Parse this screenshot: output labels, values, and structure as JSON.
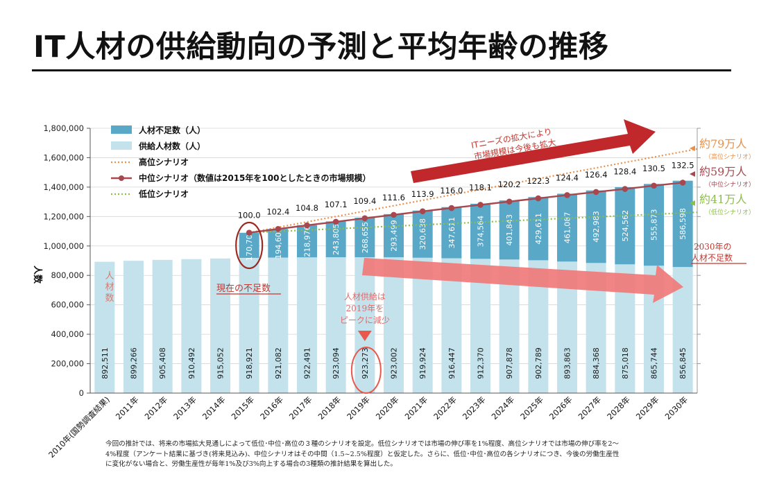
{
  "title": "IT人材の供給動向の予測と平均年齢の推移",
  "footnote": [
    "今回の推計では、将来の市場拡大見通しによって低位･中位･高位の３種のシナリオを設定。低位シナリオでは市場の伸び率を1%程度、高位シナリオでは市場の伸び率を2～",
    "4%程度（アンケート結果に基づき(将来見込み)、中位シナリオはその中間（1.5~2.5%程度）と仮定した。さらに、低位･中位･高位の各シナリオにつき、今後の労働生産性",
    "に変化がない場合と、労働生産性が毎年1%及び3%向上する場合の3種類の推計結果を算出した。"
  ],
  "colors": {
    "shortage": "#5aa8c8",
    "supply": "#c4e2ec",
    "high": "#e8904a",
    "mid": "#a9474f",
    "low": "#8cbf45",
    "arrow_dark": "#c0282b",
    "arrow_light": "#f07a7a",
    "annot_red": "#c2372f",
    "annot_pink": "#e06a6a"
  },
  "chart_data": {
    "type": "bar",
    "ylabel": "人数",
    "ylim": [
      0,
      1800000
    ],
    "yticks": [
      "0",
      "200,000",
      "400,000",
      "600,000",
      "800,000",
      "1,000,000",
      "1,200,000",
      "1,400,000",
      "1,600,000",
      "1,800,000"
    ],
    "yticks_values": [
      0,
      200000,
      400000,
      600000,
      800000,
      1000000,
      1200000,
      1400000,
      1600000,
      1800000
    ],
    "categories": [
      "2010年(国勢調査結果)",
      "2011年",
      "2012年",
      "2013年",
      "2014年",
      "2015年",
      "2016年",
      "2017年",
      "2018年",
      "2019年",
      "2020年",
      "2021年",
      "2022年",
      "2023年",
      "2024年",
      "2025年",
      "2026年",
      "2027年",
      "2028年",
      "2029年",
      "2030年"
    ],
    "legend": [
      "人材不足数（人）",
      "供給人材数（人）",
      "高位シナリオ",
      "中位シナリオ（数値は2015年を100としたときの市場規模）",
      "低位シナリオ"
    ],
    "series": [
      {
        "name": "供給人材数（人）",
        "values": [
          892511,
          899266,
          905408,
          910492,
          915052,
          918921,
          921082,
          922491,
          923094,
          923273,
          923002,
          919924,
          916447,
          912370,
          907878,
          902789,
          893863,
          884368,
          875018,
          865744,
          856845
        ],
        "labels": [
          "892,511",
          "899,266",
          "905,408",
          "910,492",
          "915,052",
          "918,921",
          "921,082",
          "922,491",
          "923,094",
          "923,273",
          "923,002",
          "919,924",
          "916,447",
          "912,370",
          "907,878",
          "902,789",
          "893,863",
          "884,368",
          "875,018",
          "865,744",
          "856,845"
        ]
      },
      {
        "name": "人材不足数（人）",
        "values": [
          null,
          null,
          null,
          null,
          null,
          170700,
          194608,
          218976,
          243805,
          268655,
          293499,
          320638,
          347611,
          374564,
          401843,
          429611,
          461087,
          492983,
          524562,
          555873,
          586598
        ],
        "labels": [
          "",
          "",
          "",
          "",
          "",
          "170,700",
          "194,608",
          "218,976",
          "243,805",
          "268,655",
          "293,499",
          "320,638",
          "347,611",
          "374,564",
          "401,843",
          "429,611",
          "461,087",
          "492,983",
          "524,562",
          "555,873",
          "586,598"
        ]
      },
      {
        "name": "中位シナリオ（数値は2015年を100としたときの市場規模）",
        "values": [
          null,
          null,
          null,
          null,
          null,
          100.0,
          102.4,
          104.8,
          107.1,
          109.4,
          111.6,
          113.9,
          116.0,
          118.1,
          120.2,
          122.3,
          124.4,
          126.4,
          128.4,
          130.5,
          132.5
        ],
        "labels": [
          "",
          "",
          "",
          "",
          "",
          "100.0",
          "102.4",
          "104.8",
          "107.1",
          "109.4",
          "111.6",
          "113.9",
          "116.0",
          "118.1",
          "120.2",
          "122.3",
          "124.4",
          "126.4",
          "128.4",
          "130.5",
          "132.5"
        ]
      }
    ],
    "scenario_shortage_2030": {
      "high": 790000,
      "mid": 590000,
      "low": 410000
    }
  },
  "annotations": {
    "arrow_top": [
      "ITニーズの拡大により",
      "市場規模は今後も拡大"
    ],
    "high_value": "約79万人",
    "high_sub": "（高位シナリオ）",
    "mid_value": "約59万人",
    "mid_sub": "（中位シナリオ）",
    "low_value": "約41万人",
    "low_sub": "（低位シナリオ）",
    "shortage_2030": [
      "2030年の",
      "人材不足数"
    ],
    "current_shortage": "現在の不足数",
    "peak": [
      "人材供給は",
      "2019年を",
      "ピークに減少"
    ],
    "left_label": [
      "人",
      "材",
      "数"
    ]
  }
}
